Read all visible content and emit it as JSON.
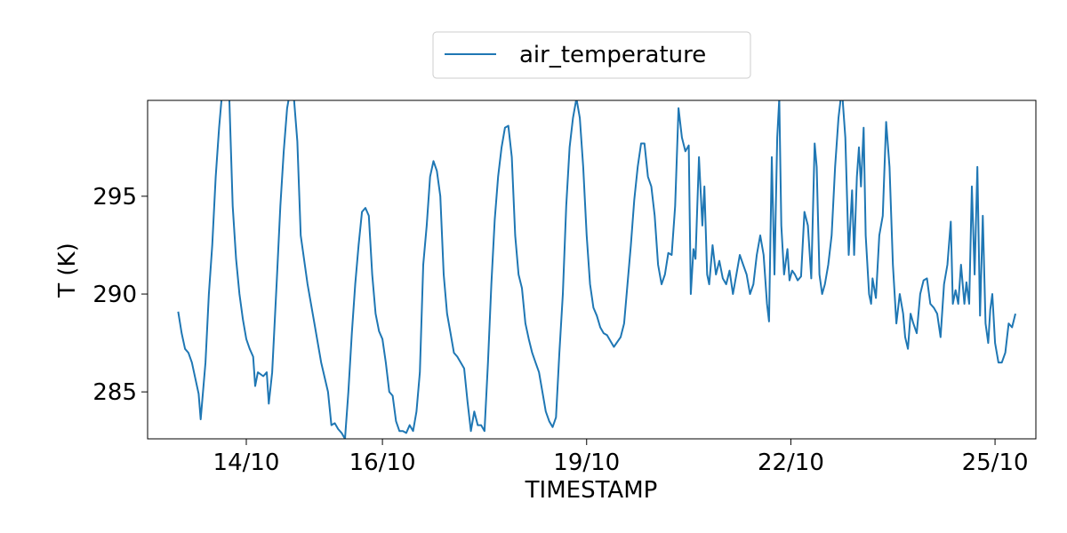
{
  "chart_data": {
    "type": "line",
    "xlabel": "TIMESTAMP",
    "ylabel": "T (K)",
    "x_unit": "day of October",
    "xlim": [
      12.55,
      25.6
    ],
    "ylim": [
      282.6,
      299.9
    ],
    "x_ticks": [
      {
        "value": 14,
        "label": "14/10"
      },
      {
        "value": 16,
        "label": "16/10"
      },
      {
        "value": 19,
        "label": "19/10"
      },
      {
        "value": 22,
        "label": "22/10"
      },
      {
        "value": 25,
        "label": "25/10"
      }
    ],
    "y_ticks": [
      {
        "value": 285,
        "label": "285"
      },
      {
        "value": 290,
        "label": "290"
      },
      {
        "value": 295,
        "label": "295"
      }
    ],
    "legend": {
      "position": "top-center"
    },
    "grid": false,
    "colors": {
      "series": "#1f77b4",
      "axes": "#000000"
    },
    "series": [
      {
        "name": "air_temperature",
        "points": [
          [
            13.0,
            289.1
          ],
          [
            13.05,
            288.0
          ],
          [
            13.1,
            287.2
          ],
          [
            13.15,
            287.0
          ],
          [
            13.2,
            286.5
          ],
          [
            13.25,
            285.7
          ],
          [
            13.3,
            284.9
          ],
          [
            13.33,
            283.6
          ],
          [
            13.4,
            286.5
          ],
          [
            13.45,
            290.0
          ],
          [
            13.5,
            292.5
          ],
          [
            13.55,
            296.0
          ],
          [
            13.6,
            298.5
          ],
          [
            13.65,
            300.5
          ],
          [
            13.7,
            301.0
          ],
          [
            13.75,
            300.0
          ],
          [
            13.8,
            294.5
          ],
          [
            13.85,
            291.8
          ],
          [
            13.9,
            290.0
          ],
          [
            13.95,
            288.7
          ],
          [
            14.0,
            287.7
          ],
          [
            14.05,
            287.2
          ],
          [
            14.1,
            286.8
          ],
          [
            14.13,
            285.3
          ],
          [
            14.17,
            286.0
          ],
          [
            14.25,
            285.8
          ],
          [
            14.3,
            286.0
          ],
          [
            14.33,
            284.4
          ],
          [
            14.38,
            286.0
          ],
          [
            14.45,
            290.8
          ],
          [
            14.5,
            294.5
          ],
          [
            14.55,
            297.3
          ],
          [
            14.6,
            299.5
          ],
          [
            14.65,
            300.5
          ],
          [
            14.7,
            300.0
          ],
          [
            14.75,
            297.8
          ],
          [
            14.8,
            293.0
          ],
          [
            14.9,
            290.5
          ],
          [
            15.0,
            288.5
          ],
          [
            15.1,
            286.5
          ],
          [
            15.2,
            285.0
          ],
          [
            15.25,
            283.3
          ],
          [
            15.3,
            283.4
          ],
          [
            15.35,
            283.1
          ],
          [
            15.4,
            282.9
          ],
          [
            15.45,
            282.6
          ],
          [
            15.5,
            285.0
          ],
          [
            15.55,
            288.0
          ],
          [
            15.6,
            290.5
          ],
          [
            15.65,
            292.5
          ],
          [
            15.7,
            294.2
          ],
          [
            15.75,
            294.4
          ],
          [
            15.8,
            294.0
          ],
          [
            15.85,
            291.0
          ],
          [
            15.9,
            289.0
          ],
          [
            15.95,
            288.1
          ],
          [
            16.0,
            287.7
          ],
          [
            16.05,
            286.5
          ],
          [
            16.1,
            285.0
          ],
          [
            16.15,
            284.8
          ],
          [
            16.2,
            283.5
          ],
          [
            16.25,
            283.0
          ],
          [
            16.3,
            283.0
          ],
          [
            16.35,
            282.9
          ],
          [
            16.4,
            283.3
          ],
          [
            16.45,
            283.0
          ],
          [
            16.5,
            284.0
          ],
          [
            16.55,
            286.0
          ],
          [
            16.6,
            291.5
          ],
          [
            16.65,
            293.5
          ],
          [
            16.7,
            296.0
          ],
          [
            16.75,
            296.8
          ],
          [
            16.8,
            296.3
          ],
          [
            16.85,
            295.0
          ],
          [
            16.9,
            291.0
          ],
          [
            16.95,
            289.0
          ],
          [
            17.0,
            288.0
          ],
          [
            17.05,
            287.0
          ],
          [
            17.1,
            286.8
          ],
          [
            17.2,
            286.2
          ],
          [
            17.25,
            284.5
          ],
          [
            17.3,
            283.0
          ],
          [
            17.35,
            284.0
          ],
          [
            17.4,
            283.3
          ],
          [
            17.45,
            283.3
          ],
          [
            17.5,
            283.0
          ],
          [
            17.55,
            286.5
          ],
          [
            17.6,
            290.5
          ],
          [
            17.65,
            293.8
          ],
          [
            17.7,
            296.0
          ],
          [
            17.75,
            297.5
          ],
          [
            17.8,
            298.5
          ],
          [
            17.85,
            298.6
          ],
          [
            17.9,
            297.0
          ],
          [
            17.95,
            293.0
          ],
          [
            18.0,
            291.0
          ],
          [
            18.05,
            290.3
          ],
          [
            18.1,
            288.5
          ],
          [
            18.15,
            287.7
          ],
          [
            18.2,
            287.0
          ],
          [
            18.25,
            286.5
          ],
          [
            18.3,
            286.0
          ],
          [
            18.35,
            285.0
          ],
          [
            18.4,
            284.0
          ],
          [
            18.45,
            283.5
          ],
          [
            18.5,
            283.2
          ],
          [
            18.55,
            283.7
          ],
          [
            18.6,
            287.0
          ],
          [
            18.65,
            290.0
          ],
          [
            18.7,
            294.5
          ],
          [
            18.75,
            297.5
          ],
          [
            18.8,
            299.0
          ],
          [
            18.85,
            300.0
          ],
          [
            18.9,
            299.0
          ],
          [
            18.95,
            296.5
          ],
          [
            19.0,
            293.0
          ],
          [
            19.05,
            290.5
          ],
          [
            19.1,
            289.3
          ],
          [
            19.15,
            288.9
          ],
          [
            19.2,
            288.3
          ],
          [
            19.25,
            288.0
          ],
          [
            19.3,
            287.9
          ],
          [
            19.4,
            287.3
          ],
          [
            19.5,
            287.8
          ],
          [
            19.55,
            288.5
          ],
          [
            19.6,
            290.5
          ],
          [
            19.65,
            292.5
          ],
          [
            19.7,
            294.8
          ],
          [
            19.75,
            296.5
          ],
          [
            19.8,
            297.7
          ],
          [
            19.85,
            297.7
          ],
          [
            19.9,
            296.0
          ],
          [
            19.95,
            295.5
          ],
          [
            20.0,
            294.0
          ],
          [
            20.05,
            291.5
          ],
          [
            20.1,
            290.5
          ],
          [
            20.15,
            291.0
          ],
          [
            20.2,
            292.1
          ],
          [
            20.25,
            292.0
          ],
          [
            20.3,
            294.5
          ],
          [
            20.35,
            299.5
          ],
          [
            20.4,
            298.0
          ],
          [
            20.45,
            297.3
          ],
          [
            20.5,
            297.6
          ],
          [
            20.53,
            290.0
          ],
          [
            20.57,
            292.3
          ],
          [
            20.6,
            291.8
          ],
          [
            20.65,
            297.0
          ],
          [
            20.7,
            293.5
          ],
          [
            20.73,
            295.5
          ],
          [
            20.77,
            291.0
          ],
          [
            20.8,
            290.5
          ],
          [
            20.85,
            292.5
          ],
          [
            20.9,
            291.0
          ],
          [
            20.95,
            291.7
          ],
          [
            21.0,
            290.8
          ],
          [
            21.05,
            290.5
          ],
          [
            21.1,
            291.2
          ],
          [
            21.15,
            290.0
          ],
          [
            21.2,
            291.0
          ],
          [
            21.25,
            292.0
          ],
          [
            21.3,
            291.5
          ],
          [
            21.35,
            291.0
          ],
          [
            21.4,
            290.0
          ],
          [
            21.45,
            290.5
          ],
          [
            21.5,
            292.0
          ],
          [
            21.55,
            293.0
          ],
          [
            21.6,
            292.0
          ],
          [
            21.65,
            289.5
          ],
          [
            21.68,
            288.6
          ],
          [
            21.72,
            297.0
          ],
          [
            21.76,
            291.0
          ],
          [
            21.8,
            298.0
          ],
          [
            21.83,
            300.0
          ],
          [
            21.86,
            293.5
          ],
          [
            21.9,
            291.0
          ],
          [
            21.95,
            292.3
          ],
          [
            21.98,
            290.7
          ],
          [
            22.02,
            291.2
          ],
          [
            22.06,
            291.0
          ],
          [
            22.1,
            290.7
          ],
          [
            22.15,
            290.9
          ],
          [
            22.2,
            294.2
          ],
          [
            22.25,
            293.5
          ],
          [
            22.3,
            290.8
          ],
          [
            22.35,
            297.7
          ],
          [
            22.38,
            296.5
          ],
          [
            22.42,
            291.0
          ],
          [
            22.46,
            290.0
          ],
          [
            22.5,
            290.5
          ],
          [
            22.55,
            291.5
          ],
          [
            22.6,
            293.0
          ],
          [
            22.65,
            296.5
          ],
          [
            22.7,
            299.0
          ],
          [
            22.75,
            300.5
          ],
          [
            22.8,
            298.0
          ],
          [
            22.85,
            292.0
          ],
          [
            22.9,
            295.3
          ],
          [
            22.93,
            292.0
          ],
          [
            22.97,
            296.0
          ],
          [
            23.0,
            297.5
          ],
          [
            23.03,
            295.5
          ],
          [
            23.07,
            298.5
          ],
          [
            23.1,
            293.0
          ],
          [
            23.15,
            290.0
          ],
          [
            23.18,
            289.5
          ],
          [
            23.2,
            290.8
          ],
          [
            23.25,
            289.8
          ],
          [
            23.3,
            293.0
          ],
          [
            23.35,
            294.0
          ],
          [
            23.4,
            298.8
          ],
          [
            23.45,
            296.5
          ],
          [
            23.5,
            291.5
          ],
          [
            23.55,
            288.5
          ],
          [
            23.6,
            290.0
          ],
          [
            23.65,
            289.0
          ],
          [
            23.68,
            287.8
          ],
          [
            23.72,
            287.2
          ],
          [
            23.76,
            289.0
          ],
          [
            23.8,
            288.5
          ],
          [
            23.85,
            288.0
          ],
          [
            23.9,
            290.0
          ],
          [
            23.95,
            290.7
          ],
          [
            24.0,
            290.8
          ],
          [
            24.05,
            289.5
          ],
          [
            24.1,
            289.3
          ],
          [
            24.15,
            289.0
          ],
          [
            24.2,
            287.8
          ],
          [
            24.25,
            290.5
          ],
          [
            24.3,
            291.5
          ],
          [
            24.35,
            293.7
          ],
          [
            24.38,
            289.5
          ],
          [
            24.42,
            290.2
          ],
          [
            24.46,
            289.5
          ],
          [
            24.5,
            291.5
          ],
          [
            24.55,
            289.5
          ],
          [
            24.58,
            290.6
          ],
          [
            24.62,
            289.5
          ],
          [
            24.66,
            295.5
          ],
          [
            24.7,
            291.0
          ],
          [
            24.74,
            296.5
          ],
          [
            24.78,
            288.9
          ],
          [
            24.82,
            294.0
          ],
          [
            24.86,
            288.5
          ],
          [
            24.9,
            287.5
          ],
          [
            24.93,
            289.2
          ],
          [
            24.96,
            290.0
          ],
          [
            25.0,
            287.5
          ],
          [
            25.05,
            286.5
          ],
          [
            25.1,
            286.5
          ],
          [
            25.15,
            287.0
          ],
          [
            25.2,
            288.5
          ],
          [
            25.25,
            288.3
          ],
          [
            25.3,
            289.0
          ]
        ]
      }
    ]
  }
}
